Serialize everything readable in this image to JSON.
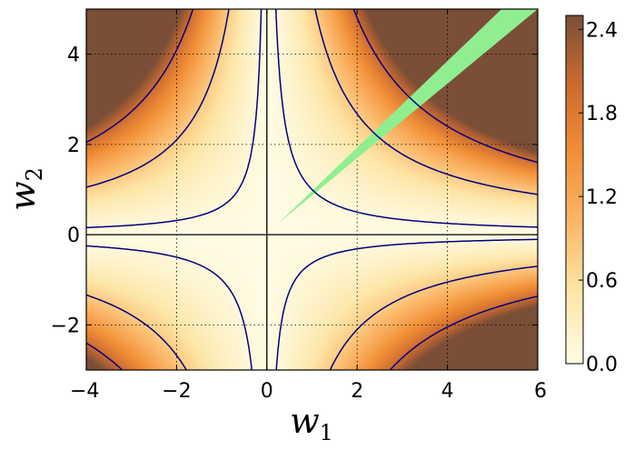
{
  "chart_data": {
    "type": "heatmap",
    "title": "",
    "xlabel": "w",
    "xlabel_sub": "1",
    "ylabel": "w",
    "ylabel_sub": "2",
    "xlim": [
      -4,
      6
    ],
    "ylim": [
      -3,
      5
    ],
    "xticks": [
      -4,
      -2,
      0,
      2,
      4,
      6
    ],
    "yticks": [
      -2,
      0,
      2,
      4
    ],
    "xtick_labels": [
      "−4",
      "−2",
      "0",
      "2",
      "4",
      "6"
    ],
    "ytick_labels": [
      "−2",
      "0",
      "2",
      "4"
    ],
    "grid": true,
    "colormap": [
      "#fffce6",
      "#fde7a9",
      "#fbb86a",
      "#f29038",
      "#cd6b30",
      "#7a4e37"
    ],
    "colorbar": {
      "range": [
        0.0,
        2.5
      ],
      "ticks": [
        0.0,
        0.6,
        1.2,
        1.8,
        2.4
      ],
      "tick_labels": [
        "0.0",
        "0.6",
        "1.2",
        "1.8",
        "2.4"
      ]
    },
    "contour_color": "#000080",
    "contour_levels": [
      0.1,
      0.8,
      2.0
    ],
    "highlight_region": {
      "color": "#90ee90",
      "description_vertices": [
        [
          0.25,
          0.25
        ],
        [
          5.2,
          5.0
        ],
        [
          6.0,
          5.0
        ],
        [
          0.25,
          0.25
        ]
      ]
    },
    "axes_lines": {
      "x0": 0,
      "y0": 0
    }
  }
}
